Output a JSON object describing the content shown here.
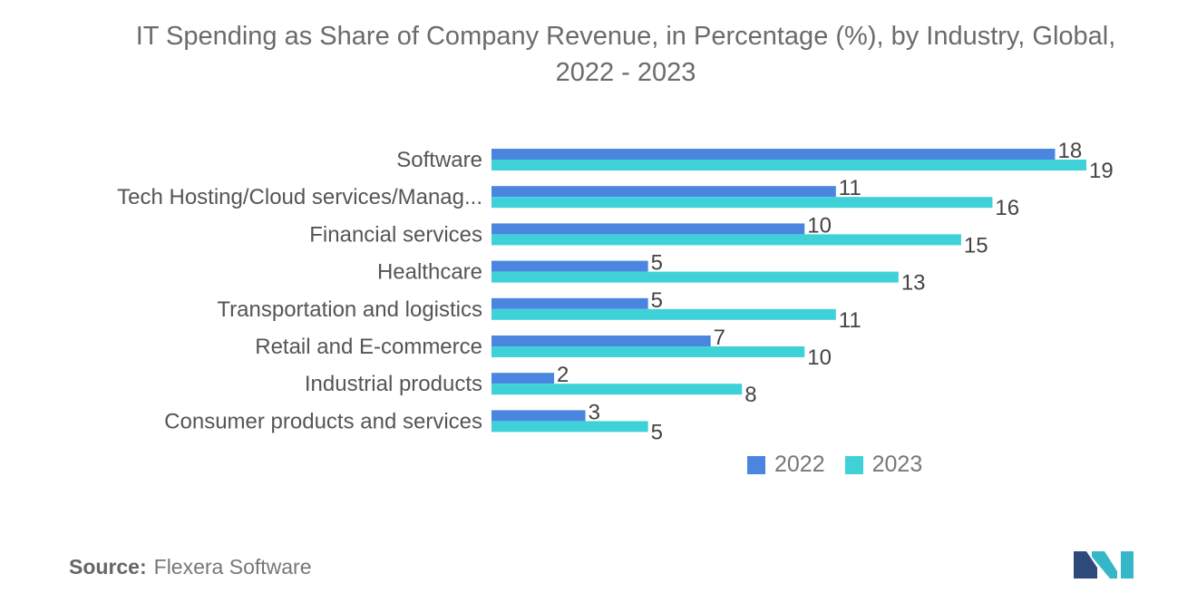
{
  "title_line1": "IT Spending as Share of Company Revenue, in Percentage (%), by Industry, Global,",
  "title_line2": "2022 - 2023",
  "source_label": "Source:",
  "source_value": "Flexera Software",
  "logo_icon": "mordor-intelligence-logo-icon",
  "colors": {
    "series_2022": "#4a86e0",
    "series_2023": "#3ed2d8",
    "logo_dark": "#2d4a7a",
    "logo_teal": "#35b7c8"
  },
  "chart_data": {
    "type": "bar",
    "orientation": "horizontal",
    "title": "IT Spending as Share of Company Revenue, in Percentage (%), by Industry, Global, 2022 - 2023",
    "categories": [
      "Software",
      "Tech Hosting/Cloud services/Manag...",
      "Financial services",
      "Healthcare",
      "Transportation and logistics",
      "Retail and E-commerce",
      "Industrial products",
      "Consumer products and services"
    ],
    "series": [
      {
        "name": "2022",
        "values": [
          18,
          11,
          10,
          5,
          5,
          7,
          2,
          3
        ]
      },
      {
        "name": "2023",
        "values": [
          19,
          16,
          15,
          13,
          11,
          10,
          8,
          5
        ]
      }
    ],
    "xlim": [
      0,
      19
    ],
    "grid": false,
    "legend_position": "bottom-right",
    "xlabel": "",
    "ylabel": ""
  }
}
